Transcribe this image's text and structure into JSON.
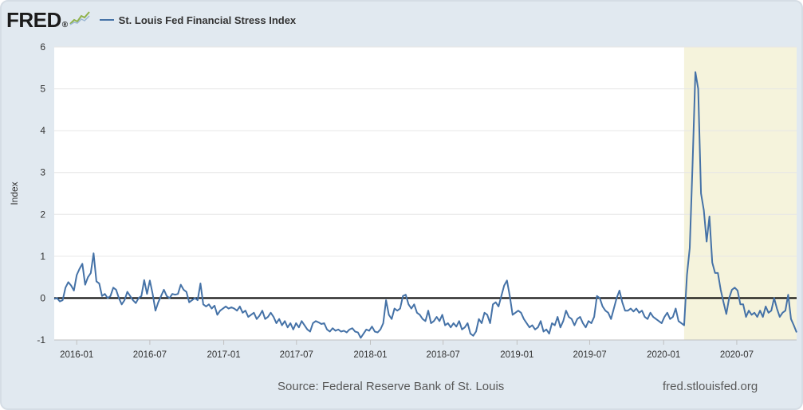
{
  "header": {
    "logo_text": "FRED",
    "logo_mark": "®",
    "logo_icon": "line-chart-icon",
    "legend_label": "St. Louis Fed Financial Stress Index"
  },
  "footer": {
    "source": "Source: Federal Reserve Bank of St. Louis",
    "url": "fred.stlouisfed.org"
  },
  "colors": {
    "line": "#4572a7",
    "recession_band": "#f5f3dc",
    "zero_line": "#000000",
    "background": "#e1e9f0"
  },
  "chart_data": {
    "type": "line",
    "title": "",
    "xlabel": "",
    "ylabel": "Index",
    "ylim": [
      -1,
      6
    ],
    "yticks": [
      -1,
      0,
      1,
      2,
      3,
      4,
      5,
      6
    ],
    "xlim": [
      "2015-11-06",
      "2020-11-27"
    ],
    "xticks": [
      "2016-01",
      "2016-07",
      "2017-01",
      "2017-07",
      "2018-01",
      "2018-07",
      "2019-01",
      "2019-07",
      "2020-01",
      "2020-07"
    ],
    "grid": true,
    "legend": "top-left",
    "reference_line": 0,
    "shaded_region": [
      "2020-02-21",
      "2020-11-27"
    ],
    "series": [
      {
        "name": "St. Louis Fed Financial Stress Index",
        "points": [
          [
            "2015-11-06",
            -0.02
          ],
          [
            "2015-11-13",
            0.0
          ],
          [
            "2015-11-20",
            -0.08
          ],
          [
            "2015-11-27",
            -0.05
          ],
          [
            "2015-12-04",
            0.25
          ],
          [
            "2015-12-11",
            0.38
          ],
          [
            "2015-12-18",
            0.3
          ],
          [
            "2015-12-25",
            0.18
          ],
          [
            "2016-01-01",
            0.55
          ],
          [
            "2016-01-08",
            0.7
          ],
          [
            "2016-01-15",
            0.82
          ],
          [
            "2016-01-22",
            0.32
          ],
          [
            "2016-01-29",
            0.5
          ],
          [
            "2016-02-05",
            0.6
          ],
          [
            "2016-02-12",
            1.07
          ],
          [
            "2016-02-19",
            0.4
          ],
          [
            "2016-02-26",
            0.35
          ],
          [
            "2016-03-04",
            0.05
          ],
          [
            "2016-03-11",
            0.1
          ],
          [
            "2016-03-18",
            0.0
          ],
          [
            "2016-03-25",
            0.05
          ],
          [
            "2016-04-01",
            0.25
          ],
          [
            "2016-04-08",
            0.2
          ],
          [
            "2016-04-15",
            0.0
          ],
          [
            "2016-04-22",
            -0.15
          ],
          [
            "2016-04-29",
            -0.05
          ],
          [
            "2016-05-06",
            0.15
          ],
          [
            "2016-05-13",
            0.05
          ],
          [
            "2016-05-20",
            -0.05
          ],
          [
            "2016-05-27",
            -0.12
          ],
          [
            "2016-06-03",
            0.0
          ],
          [
            "2016-06-10",
            0.05
          ],
          [
            "2016-06-17",
            0.43
          ],
          [
            "2016-06-24",
            0.1
          ],
          [
            "2016-07-01",
            0.42
          ],
          [
            "2016-07-08",
            0.1
          ],
          [
            "2016-07-15",
            -0.3
          ],
          [
            "2016-07-22",
            -0.1
          ],
          [
            "2016-07-29",
            0.05
          ],
          [
            "2016-08-05",
            0.2
          ],
          [
            "2016-08-12",
            0.05
          ],
          [
            "2016-08-19",
            0.0
          ],
          [
            "2016-08-26",
            0.1
          ],
          [
            "2016-09-02",
            0.08
          ],
          [
            "2016-09-09",
            0.1
          ],
          [
            "2016-09-16",
            0.32
          ],
          [
            "2016-09-23",
            0.2
          ],
          [
            "2016-09-30",
            0.15
          ],
          [
            "2016-10-07",
            -0.1
          ],
          [
            "2016-10-14",
            -0.05
          ],
          [
            "2016-10-21",
            0.0
          ],
          [
            "2016-10-28",
            -0.05
          ],
          [
            "2016-11-04",
            0.35
          ],
          [
            "2016-11-11",
            -0.15
          ],
          [
            "2016-11-18",
            -0.2
          ],
          [
            "2016-11-25",
            -0.15
          ],
          [
            "2016-12-02",
            -0.25
          ],
          [
            "2016-12-09",
            -0.18
          ],
          [
            "2016-12-16",
            -0.4
          ],
          [
            "2016-12-23",
            -0.3
          ],
          [
            "2016-12-30",
            -0.25
          ],
          [
            "2017-01-06",
            -0.2
          ],
          [
            "2017-01-13",
            -0.25
          ],
          [
            "2017-01-20",
            -0.22
          ],
          [
            "2017-01-27",
            -0.25
          ],
          [
            "2017-02-03",
            -0.3
          ],
          [
            "2017-02-10",
            -0.2
          ],
          [
            "2017-02-17",
            -0.35
          ],
          [
            "2017-02-24",
            -0.3
          ],
          [
            "2017-03-03",
            -0.45
          ],
          [
            "2017-03-10",
            -0.4
          ],
          [
            "2017-03-17",
            -0.35
          ],
          [
            "2017-03-24",
            -0.5
          ],
          [
            "2017-03-31",
            -0.42
          ],
          [
            "2017-04-07",
            -0.3
          ],
          [
            "2017-04-14",
            -0.5
          ],
          [
            "2017-04-21",
            -0.45
          ],
          [
            "2017-04-28",
            -0.35
          ],
          [
            "2017-05-05",
            -0.45
          ],
          [
            "2017-05-12",
            -0.6
          ],
          [
            "2017-05-19",
            -0.5
          ],
          [
            "2017-05-26",
            -0.65
          ],
          [
            "2017-06-02",
            -0.55
          ],
          [
            "2017-06-09",
            -0.7
          ],
          [
            "2017-06-16",
            -0.6
          ],
          [
            "2017-06-23",
            -0.75
          ],
          [
            "2017-06-30",
            -0.6
          ],
          [
            "2017-07-07",
            -0.7
          ],
          [
            "2017-07-14",
            -0.55
          ],
          [
            "2017-07-21",
            -0.65
          ],
          [
            "2017-07-28",
            -0.75
          ],
          [
            "2017-08-04",
            -0.8
          ],
          [
            "2017-08-11",
            -0.6
          ],
          [
            "2017-08-18",
            -0.55
          ],
          [
            "2017-08-25",
            -0.58
          ],
          [
            "2017-09-01",
            -0.62
          ],
          [
            "2017-09-08",
            -0.6
          ],
          [
            "2017-09-15",
            -0.75
          ],
          [
            "2017-09-22",
            -0.8
          ],
          [
            "2017-09-29",
            -0.72
          ],
          [
            "2017-10-06",
            -0.78
          ],
          [
            "2017-10-13",
            -0.75
          ],
          [
            "2017-10-20",
            -0.8
          ],
          [
            "2017-10-27",
            -0.78
          ],
          [
            "2017-11-03",
            -0.82
          ],
          [
            "2017-11-10",
            -0.75
          ],
          [
            "2017-11-17",
            -0.72
          ],
          [
            "2017-11-24",
            -0.8
          ],
          [
            "2017-12-01",
            -0.82
          ],
          [
            "2017-12-08",
            -0.95
          ],
          [
            "2017-12-15",
            -0.85
          ],
          [
            "2017-12-22",
            -0.75
          ],
          [
            "2017-12-29",
            -0.78
          ],
          [
            "2018-01-05",
            -0.68
          ],
          [
            "2018-01-12",
            -0.8
          ],
          [
            "2018-01-19",
            -0.82
          ],
          [
            "2018-01-26",
            -0.75
          ],
          [
            "2018-02-02",
            -0.6
          ],
          [
            "2018-02-09",
            -0.05
          ],
          [
            "2018-02-16",
            -0.4
          ],
          [
            "2018-02-23",
            -0.5
          ],
          [
            "2018-03-02",
            -0.25
          ],
          [
            "2018-03-09",
            -0.3
          ],
          [
            "2018-03-16",
            -0.25
          ],
          [
            "2018-03-23",
            0.05
          ],
          [
            "2018-03-30",
            0.08
          ],
          [
            "2018-04-06",
            -0.15
          ],
          [
            "2018-04-13",
            -0.25
          ],
          [
            "2018-04-20",
            -0.15
          ],
          [
            "2018-04-27",
            -0.35
          ],
          [
            "2018-05-04",
            -0.4
          ],
          [
            "2018-05-11",
            -0.5
          ],
          [
            "2018-05-18",
            -0.55
          ],
          [
            "2018-05-25",
            -0.3
          ],
          [
            "2018-06-01",
            -0.6
          ],
          [
            "2018-06-08",
            -0.55
          ],
          [
            "2018-06-15",
            -0.45
          ],
          [
            "2018-06-22",
            -0.55
          ],
          [
            "2018-06-29",
            -0.4
          ],
          [
            "2018-07-06",
            -0.65
          ],
          [
            "2018-07-13",
            -0.6
          ],
          [
            "2018-07-20",
            -0.7
          ],
          [
            "2018-07-27",
            -0.6
          ],
          [
            "2018-08-03",
            -0.68
          ],
          [
            "2018-08-10",
            -0.55
          ],
          [
            "2018-08-17",
            -0.75
          ],
          [
            "2018-08-24",
            -0.7
          ],
          [
            "2018-08-31",
            -0.6
          ],
          [
            "2018-09-07",
            -0.85
          ],
          [
            "2018-09-14",
            -0.9
          ],
          [
            "2018-09-21",
            -0.8
          ],
          [
            "2018-09-28",
            -0.5
          ],
          [
            "2018-10-05",
            -0.6
          ],
          [
            "2018-10-12",
            -0.35
          ],
          [
            "2018-10-19",
            -0.4
          ],
          [
            "2018-10-26",
            -0.6
          ],
          [
            "2018-11-02",
            -0.15
          ],
          [
            "2018-11-09",
            -0.1
          ],
          [
            "2018-11-16",
            -0.2
          ],
          [
            "2018-11-23",
            0.05
          ],
          [
            "2018-11-30",
            0.3
          ],
          [
            "2018-12-07",
            0.42
          ],
          [
            "2018-12-14",
            0.05
          ],
          [
            "2018-12-21",
            -0.4
          ],
          [
            "2018-12-28",
            -0.35
          ],
          [
            "2019-01-04",
            -0.3
          ],
          [
            "2019-01-11",
            -0.35
          ],
          [
            "2019-01-18",
            -0.5
          ],
          [
            "2019-01-25",
            -0.6
          ],
          [
            "2019-02-01",
            -0.7
          ],
          [
            "2019-02-08",
            -0.65
          ],
          [
            "2019-02-15",
            -0.75
          ],
          [
            "2019-02-22",
            -0.7
          ],
          [
            "2019-03-01",
            -0.55
          ],
          [
            "2019-03-08",
            -0.8
          ],
          [
            "2019-03-15",
            -0.75
          ],
          [
            "2019-03-22",
            -0.85
          ],
          [
            "2019-03-29",
            -0.6
          ],
          [
            "2019-04-05",
            -0.65
          ],
          [
            "2019-04-12",
            -0.45
          ],
          [
            "2019-04-19",
            -0.7
          ],
          [
            "2019-04-26",
            -0.55
          ],
          [
            "2019-05-03",
            -0.3
          ],
          [
            "2019-05-10",
            -0.45
          ],
          [
            "2019-05-17",
            -0.5
          ],
          [
            "2019-05-24",
            -0.65
          ],
          [
            "2019-05-31",
            -0.5
          ],
          [
            "2019-06-07",
            -0.45
          ],
          [
            "2019-06-14",
            -0.6
          ],
          [
            "2019-06-21",
            -0.7
          ],
          [
            "2019-06-28",
            -0.55
          ],
          [
            "2019-07-05",
            -0.6
          ],
          [
            "2019-07-12",
            -0.45
          ],
          [
            "2019-07-19",
            0.05
          ],
          [
            "2019-07-26",
            0.0
          ],
          [
            "2019-08-02",
            -0.2
          ],
          [
            "2019-08-09",
            -0.3
          ],
          [
            "2019-08-16",
            -0.35
          ],
          [
            "2019-08-23",
            -0.5
          ],
          [
            "2019-08-30",
            -0.25
          ],
          [
            "2019-09-06",
            0.0
          ],
          [
            "2019-09-13",
            0.18
          ],
          [
            "2019-09-20",
            -0.1
          ],
          [
            "2019-09-27",
            -0.3
          ],
          [
            "2019-10-04",
            -0.3
          ],
          [
            "2019-10-11",
            -0.25
          ],
          [
            "2019-10-18",
            -0.32
          ],
          [
            "2019-10-25",
            -0.25
          ],
          [
            "2019-11-01",
            -0.35
          ],
          [
            "2019-11-08",
            -0.3
          ],
          [
            "2019-11-15",
            -0.45
          ],
          [
            "2019-11-22",
            -0.5
          ],
          [
            "2019-11-29",
            -0.35
          ],
          [
            "2019-12-06",
            -0.45
          ],
          [
            "2019-12-13",
            -0.5
          ],
          [
            "2019-12-20",
            -0.55
          ],
          [
            "2019-12-27",
            -0.6
          ],
          [
            "2020-01-03",
            -0.45
          ],
          [
            "2020-01-10",
            -0.35
          ],
          [
            "2020-01-17",
            -0.5
          ],
          [
            "2020-01-24",
            -0.45
          ],
          [
            "2020-01-31",
            -0.25
          ],
          [
            "2020-02-07",
            -0.55
          ],
          [
            "2020-02-14",
            -0.6
          ],
          [
            "2020-02-21",
            -0.65
          ],
          [
            "2020-02-28",
            0.55
          ],
          [
            "2020-03-06",
            1.2
          ],
          [
            "2020-03-13",
            3.2
          ],
          [
            "2020-03-20",
            5.4
          ],
          [
            "2020-03-27",
            5.0
          ],
          [
            "2020-04-03",
            2.5
          ],
          [
            "2020-04-10",
            2.1
          ],
          [
            "2020-04-17",
            1.35
          ],
          [
            "2020-04-24",
            1.95
          ],
          [
            "2020-05-01",
            0.85
          ],
          [
            "2020-05-08",
            0.6
          ],
          [
            "2020-05-15",
            0.6
          ],
          [
            "2020-05-22",
            0.2
          ],
          [
            "2020-05-29",
            -0.1
          ],
          [
            "2020-06-05",
            -0.38
          ],
          [
            "2020-06-12",
            0.0
          ],
          [
            "2020-06-19",
            0.2
          ],
          [
            "2020-06-26",
            0.25
          ],
          [
            "2020-07-03",
            0.18
          ],
          [
            "2020-07-10",
            -0.15
          ],
          [
            "2020-07-17",
            -0.15
          ],
          [
            "2020-07-24",
            -0.45
          ],
          [
            "2020-07-31",
            -0.3
          ],
          [
            "2020-08-07",
            -0.4
          ],
          [
            "2020-08-14",
            -0.35
          ],
          [
            "2020-08-21",
            -0.45
          ],
          [
            "2020-08-28",
            -0.3
          ],
          [
            "2020-09-04",
            -0.45
          ],
          [
            "2020-09-11",
            -0.2
          ],
          [
            "2020-09-18",
            -0.35
          ],
          [
            "2020-09-25",
            -0.3
          ],
          [
            "2020-10-02",
            0.0
          ],
          [
            "2020-10-09",
            -0.25
          ],
          [
            "2020-10-16",
            -0.45
          ],
          [
            "2020-10-23",
            -0.35
          ],
          [
            "2020-10-30",
            -0.3
          ],
          [
            "2020-11-06",
            0.08
          ],
          [
            "2020-11-13",
            -0.5
          ],
          [
            "2020-11-20",
            -0.65
          ],
          [
            "2020-11-27",
            -0.82
          ]
        ]
      }
    ]
  }
}
